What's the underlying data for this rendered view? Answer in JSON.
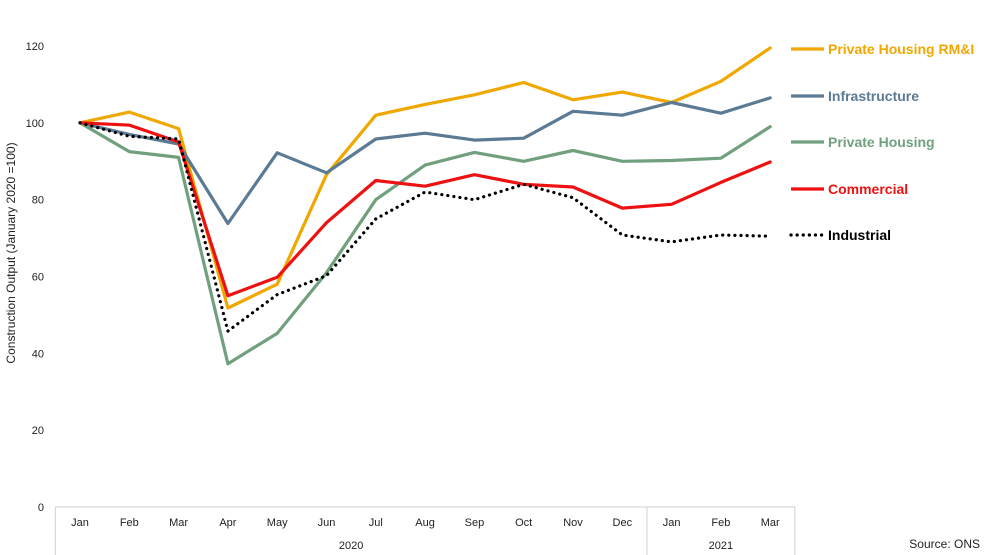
{
  "chart_data": {
    "type": "line",
    "ylabel": "Construction Output (January 2020 =100)",
    "ylim": [
      0,
      120
    ],
    "yticks": [
      0,
      20,
      40,
      60,
      80,
      100,
      120
    ],
    "categories": [
      "Jan",
      "Feb",
      "Mar",
      "Apr",
      "May",
      "Jun",
      "Jul",
      "Aug",
      "Sep",
      "Oct",
      "Nov",
      "Dec",
      "Jan",
      "Feb",
      "Mar"
    ],
    "year_groups": [
      {
        "label": "2020",
        "span": 12
      },
      {
        "label": "2021",
        "span": 3
      }
    ],
    "series": [
      {
        "name": "Private Housing RM&I",
        "color": "#F0A800",
        "style": "solid",
        "values": [
          100,
          102.8,
          98.5,
          51.8,
          58,
          86.5,
          102,
          104.8,
          107.3,
          110.5,
          106,
          108,
          105.3,
          110.8,
          119.5
        ]
      },
      {
        "name": "Infrastructure",
        "color": "#5B7A94",
        "style": "solid",
        "values": [
          100,
          97,
          94.5,
          73.8,
          92.2,
          87,
          95.8,
          97.3,
          95.5,
          96,
          103,
          102,
          105.3,
          102.5,
          106.5
        ]
      },
      {
        "name": "Private Housing",
        "color": "#71A07E",
        "style": "solid",
        "values": [
          100,
          92.5,
          91,
          37.3,
          45.2,
          61,
          80,
          89,
          92.3,
          90,
          92.8,
          90,
          90.2,
          90.8,
          99
        ]
      },
      {
        "name": "Commercial",
        "color": "#EE1111",
        "style": "solid",
        "values": [
          100,
          99.4,
          95,
          55,
          59.8,
          74,
          85,
          83.5,
          86.5,
          84,
          83.3,
          77.8,
          78.8,
          84.5,
          89.8
        ]
      },
      {
        "name": "Industrial",
        "color": "#000000",
        "style": "dotted",
        "values": [
          100,
          96.5,
          95.8,
          45.8,
          55.3,
          60.2,
          75,
          82,
          80,
          84,
          80.5,
          70.8,
          69,
          70.8,
          70.5
        ]
      }
    ],
    "source": "Source: ONS",
    "legend_position": "right"
  }
}
